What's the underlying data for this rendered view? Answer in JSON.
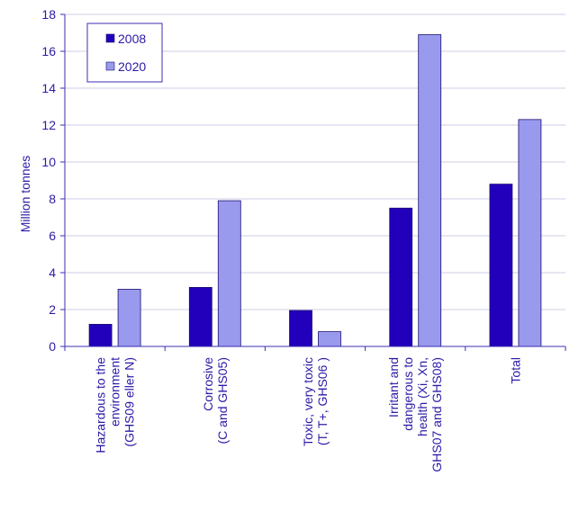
{
  "chart_data": {
    "type": "bar",
    "title": "",
    "xlabel": "",
    "ylabel": "Million tonnes",
    "ylim": [
      0,
      18
    ],
    "yticks": [
      0,
      2,
      4,
      6,
      8,
      10,
      12,
      14,
      16,
      18
    ],
    "grid": true,
    "legend_position": "top-left",
    "categories": [
      [
        "Hazardous to the",
        "environment",
        "(GHS09 eller N)"
      ],
      [
        "Corrosive",
        "(C and GHS05)"
      ],
      [
        "Toxic, very toxic",
        "(T, T+, GHS06 )"
      ],
      [
        "Irritant and",
        "dangerous to",
        "health (Xi, Xn,",
        "GHS07 and GHS08)"
      ],
      [
        "Total"
      ]
    ],
    "series": [
      {
        "name": "2008",
        "color": "#2200bb",
        "values": [
          1.2,
          3.2,
          1.95,
          7.5,
          8.8
        ]
      },
      {
        "name": "2020",
        "color": "#9999ee",
        "values": [
          3.1,
          7.9,
          0.8,
          16.9,
          12.3
        ]
      }
    ]
  }
}
